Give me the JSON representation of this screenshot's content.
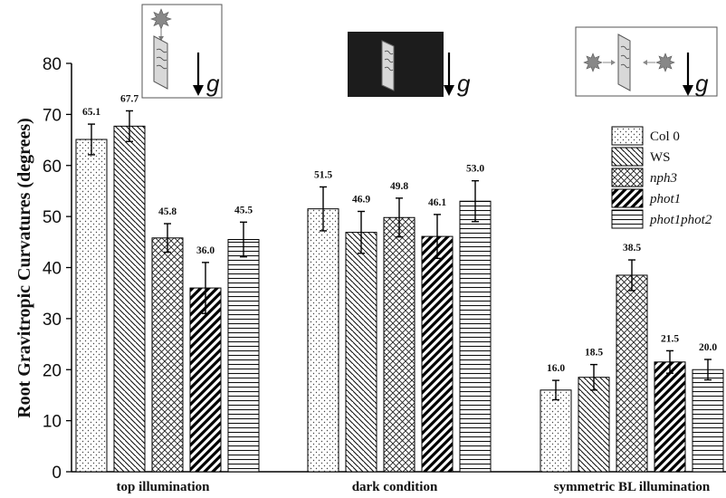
{
  "chart_data": {
    "type": "bar",
    "title": "",
    "xlabel": "",
    "ylabel": "Root Gravitropic Curvatures (degrees)",
    "ylim": [
      0,
      80
    ],
    "yticks": [
      "0",
      "10",
      "20",
      "30",
      "40",
      "50",
      "60",
      "70",
      "80"
    ],
    "categories": [
      "top illumination",
      "dark condition",
      "symmetric BL illumination"
    ],
    "series": [
      {
        "name": "Col 0",
        "italic": false,
        "pattern": "dots",
        "values": [
          65.1,
          51.5,
          16.0
        ],
        "labels": [
          "65.1",
          "51.5",
          "16.0"
        ],
        "errors": [
          3.0,
          4.3,
          1.9
        ]
      },
      {
        "name": "WS",
        "italic": false,
        "pattern": "diag-down",
        "values": [
          67.7,
          46.9,
          18.5
        ],
        "labels": [
          "67.7",
          "46.9",
          "18.5"
        ],
        "errors": [
          3.0,
          4.1,
          2.5
        ]
      },
      {
        "name": "nph3",
        "italic": true,
        "pattern": "crosshatch",
        "values": [
          45.8,
          49.8,
          38.5
        ],
        "labels": [
          "45.8",
          "49.8",
          "38.5"
        ],
        "errors": [
          2.8,
          3.8,
          3.0
        ]
      },
      {
        "name": "phot1",
        "italic": true,
        "pattern": "diag-up-thick",
        "values": [
          36.0,
          46.1,
          21.5
        ],
        "labels": [
          "36.0",
          "46.1",
          "21.5"
        ],
        "errors": [
          5.0,
          4.3,
          2.2
        ]
      },
      {
        "name": "phot1phot2",
        "italic": true,
        "pattern": "horizontal",
        "values": [
          45.5,
          53.0,
          20.0
        ],
        "labels": [
          "45.5",
          "53.0",
          "20.0"
        ],
        "errors": [
          3.4,
          4.0,
          2.0
        ]
      }
    ],
    "legend_position": "top-right",
    "grid": false
  },
  "insets": {
    "gravity_symbol": "g",
    "panels": [
      {
        "condition": "top illumination",
        "icon": "light-source-top-icon"
      },
      {
        "condition": "dark condition",
        "icon": "dark-box-icon"
      },
      {
        "condition": "symmetric BL illumination",
        "icon": "light-sources-both-sides-icon"
      }
    ]
  }
}
